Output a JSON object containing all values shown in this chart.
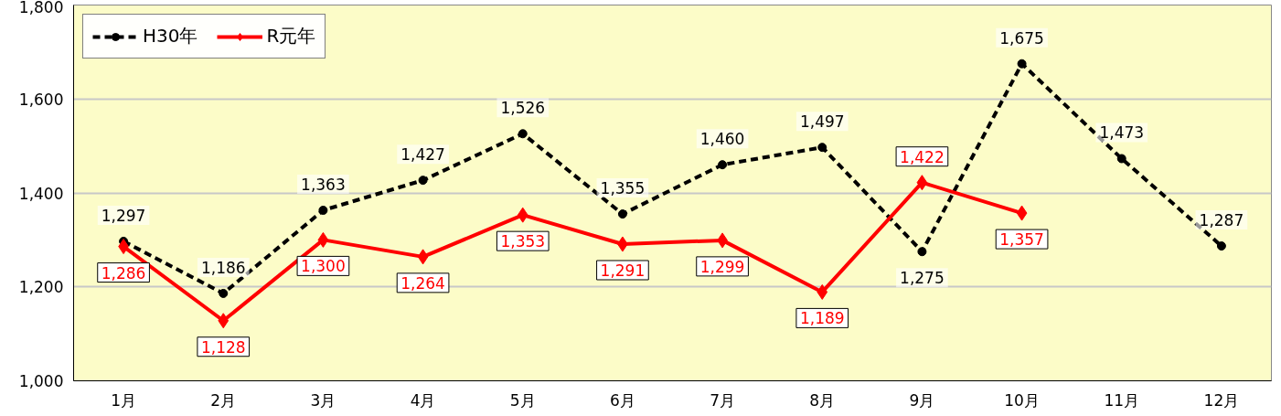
{
  "chart_data": {
    "type": "line",
    "categories": [
      "1月",
      "2月",
      "3月",
      "4月",
      "5月",
      "6月",
      "7月",
      "8月",
      "9月",
      "10月",
      "11月",
      "12月"
    ],
    "series": [
      {
        "name": "H30年",
        "color": "#000000",
        "values": [
          1297,
          1186,
          1363,
          1427,
          1526,
          1355,
          1460,
          1497,
          1275,
          1675,
          1473,
          1287
        ],
        "value_labels": [
          "1,297",
          "1,186",
          "1,363",
          "1,427",
          "1,526",
          "1,355",
          "1,460",
          "1,497",
          "1,275",
          "1,675",
          "1,473",
          "1,287"
        ],
        "marker": "circle",
        "line_style": "dashed"
      },
      {
        "name": "R元年",
        "color": "#ff0000",
        "values": [
          1286,
          1128,
          1300,
          1264,
          1353,
          1291,
          1299,
          1189,
          1422,
          1357,
          null,
          null
        ],
        "value_labels": [
          "1,286",
          "1,128",
          "1,300",
          "1,264",
          "1,353",
          "1,291",
          "1,299",
          "1,189",
          "1,422",
          "1,357",
          null,
          null
        ],
        "marker": "diamond",
        "line_style": "solid"
      }
    ],
    "ylim": [
      1000,
      1800
    ],
    "yticks": [
      {
        "value": 1000,
        "label": "1,000"
      },
      {
        "value": 1200,
        "label": "1,200"
      },
      {
        "value": 1400,
        "label": "1,400"
      },
      {
        "value": 1600,
        "label": "1,600"
      },
      {
        "value": 1800,
        "label": "1,800"
      }
    ],
    "grid": "y",
    "legend": "top left"
  }
}
